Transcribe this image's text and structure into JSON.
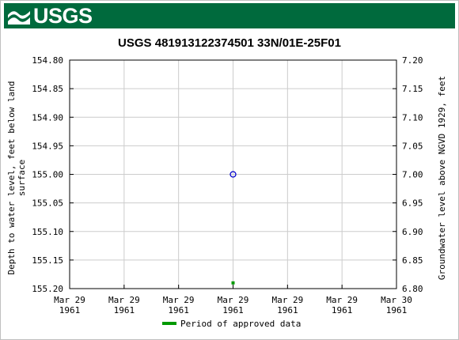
{
  "header": {
    "logo_text": "USGS",
    "brand_color": "#006a3d"
  },
  "chart_data": {
    "type": "scatter",
    "title": "USGS 481913122374501 33N/01E-25F01",
    "ylabel_left": [
      "Depth to water level, feet below land",
      "surface"
    ],
    "ylabel_right": "Groundwater level above NGVD 1929, feet",
    "y_left_range": [
      154.8,
      155.2
    ],
    "y_left_inverted": true,
    "y_left_ticks": [
      "154.80",
      "154.85",
      "154.90",
      "154.95",
      "155.00",
      "155.05",
      "155.10",
      "155.15",
      "155.20"
    ],
    "y_right_range": [
      6.8,
      7.2
    ],
    "y_right_ticks": [
      "7.20",
      "7.15",
      "7.10",
      "7.05",
      "7.00",
      "6.95",
      "6.90",
      "6.85",
      "6.80"
    ],
    "x_ticks": [
      [
        "Mar 29",
        "1961"
      ],
      [
        "Mar 29",
        "1961"
      ],
      [
        "Mar 29",
        "1961"
      ],
      [
        "Mar 29",
        "1961"
      ],
      [
        "Mar 29",
        "1961"
      ],
      [
        "Mar 29",
        "1961"
      ],
      [
        "Mar 30",
        "1961"
      ]
    ],
    "x_range_fraction": [
      0,
      1
    ],
    "grid": true,
    "series": [
      {
        "kind": "measurement",
        "x_fraction": 0.5,
        "y": 155.0,
        "color": "#0000cc",
        "marker": "open-circle"
      },
      {
        "kind": "approved-period",
        "x_fraction": 0.5,
        "y": 155.19,
        "color": "#009900",
        "marker": "square"
      }
    ],
    "legend": {
      "label": "Period of approved data",
      "color": "#009900",
      "placement": "bottom-center"
    }
  }
}
